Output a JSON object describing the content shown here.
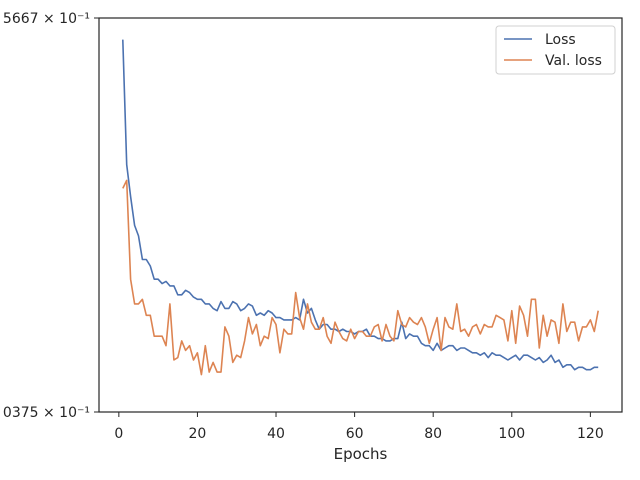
{
  "chart_data": {
    "type": "line",
    "xlabel": "Epochs",
    "ylabel": "",
    "yscale": "log",
    "ylim": [
      0.375,
      0.5667
    ],
    "xlim": [
      -5.05,
      128.05
    ],
    "xticks": [
      0,
      20,
      40,
      60,
      80,
      100,
      120
    ],
    "xtick_labels": [
      "0",
      "20",
      "40",
      "60",
      "80",
      "100",
      "120"
    ],
    "ytick_labels": [
      "5667 × 10⁻¹",
      "0375 × 10⁻¹"
    ],
    "grid": false,
    "legend_position": "top-right",
    "colors": {
      "loss": "#4c72b0",
      "val_loss": "#dd8452"
    },
    "series": [
      {
        "name": "Loss",
        "x": [
          1,
          2,
          3,
          4,
          5,
          6,
          7,
          8,
          9,
          10,
          11,
          12,
          13,
          14,
          15,
          16,
          17,
          18,
          19,
          20,
          21,
          22,
          23,
          24,
          25,
          26,
          27,
          28,
          29,
          30,
          31,
          32,
          33,
          34,
          35,
          36,
          37,
          38,
          39,
          40,
          41,
          42,
          43,
          44,
          45,
          46,
          47,
          48,
          49,
          50,
          51,
          52,
          53,
          54,
          55,
          56,
          57,
          58,
          59,
          60,
          61,
          62,
          63,
          64,
          65,
          66,
          67,
          68,
          69,
          70,
          71,
          72,
          73,
          74,
          75,
          76,
          77,
          78,
          79,
          80,
          81,
          82,
          83,
          84,
          85,
          86,
          87,
          88,
          89,
          90,
          91,
          92,
          93,
          94,
          95,
          96,
          97,
          98,
          99,
          100,
          101,
          102,
          103,
          104,
          105,
          106,
          107,
          108,
          109,
          110,
          111,
          112,
          113,
          114,
          115,
          116,
          117,
          118,
          119,
          120,
          121,
          122
        ],
        "values": [
          0.554,
          0.486,
          0.47,
          0.456,
          0.451,
          0.44,
          0.44,
          0.437,
          0.431,
          0.431,
          0.429,
          0.43,
          0.428,
          0.428,
          0.424,
          0.424,
          0.426,
          0.425,
          0.423,
          0.422,
          0.422,
          0.42,
          0.42,
          0.418,
          0.417,
          0.421,
          0.418,
          0.418,
          0.421,
          0.42,
          0.417,
          0.418,
          0.42,
          0.419,
          0.415,
          0.416,
          0.415,
          0.417,
          0.416,
          0.414,
          0.414,
          0.413,
          0.413,
          0.413,
          0.414,
          0.413,
          0.422,
          0.416,
          0.418,
          0.413,
          0.409,
          0.411,
          0.411,
          0.409,
          0.409,
          0.408,
          0.409,
          0.408,
          0.408,
          0.407,
          0.408,
          0.408,
          0.409,
          0.406,
          0.406,
          0.405,
          0.405,
          0.404,
          0.404,
          0.405,
          0.405,
          0.412,
          0.405,
          0.407,
          0.406,
          0.406,
          0.403,
          0.402,
          0.402,
          0.4,
          0.403,
          0.4,
          0.401,
          0.402,
          0.402,
          0.4,
          0.401,
          0.401,
          0.4,
          0.399,
          0.399,
          0.398,
          0.399,
          0.397,
          0.399,
          0.398,
          0.398,
          0.397,
          0.396,
          0.397,
          0.398,
          0.396,
          0.398,
          0.398,
          0.397,
          0.396,
          0.397,
          0.395,
          0.396,
          0.398,
          0.395,
          0.396,
          0.393,
          0.394,
          0.394,
          0.392,
          0.393,
          0.393,
          0.392,
          0.392,
          0.393,
          0.393
        ]
      },
      {
        "name": "Val. loss",
        "x": [
          1,
          2,
          3,
          4,
          5,
          6,
          7,
          8,
          9,
          10,
          11,
          12,
          13,
          14,
          15,
          16,
          17,
          18,
          19,
          20,
          21,
          22,
          23,
          24,
          25,
          26,
          27,
          28,
          29,
          30,
          31,
          32,
          33,
          34,
          35,
          36,
          37,
          38,
          39,
          40,
          41,
          42,
          43,
          44,
          45,
          46,
          47,
          48,
          49,
          50,
          51,
          52,
          53,
          54,
          55,
          56,
          57,
          58,
          59,
          60,
          61,
          62,
          63,
          64,
          65,
          66,
          67,
          68,
          69,
          70,
          71,
          72,
          73,
          74,
          75,
          76,
          77,
          78,
          79,
          80,
          81,
          82,
          83,
          84,
          85,
          86,
          87,
          88,
          89,
          90,
          91,
          92,
          93,
          94,
          95,
          96,
          97,
          98,
          99,
          100,
          101,
          102,
          103,
          104,
          105,
          106,
          107,
          108,
          109,
          110,
          111,
          112,
          113,
          114,
          115,
          116,
          117,
          118,
          119,
          120,
          121,
          122
        ],
        "values": [
          0.474,
          0.478,
          0.431,
          0.42,
          0.42,
          0.422,
          0.415,
          0.415,
          0.406,
          0.406,
          0.406,
          0.402,
          0.42,
          0.396,
          0.397,
          0.404,
          0.4,
          0.402,
          0.396,
          0.399,
          0.39,
          0.402,
          0.391,
          0.395,
          0.391,
          0.391,
          0.41,
          0.406,
          0.395,
          0.398,
          0.397,
          0.404,
          0.414,
          0.407,
          0.411,
          0.402,
          0.406,
          0.405,
          0.414,
          0.411,
          0.399,
          0.409,
          0.407,
          0.407,
          0.425,
          0.414,
          0.409,
          0.42,
          0.412,
          0.409,
          0.409,
          0.414,
          0.406,
          0.403,
          0.412,
          0.408,
          0.405,
          0.404,
          0.409,
          0.405,
          0.408,
          0.408,
          0.406,
          0.406,
          0.41,
          0.411,
          0.404,
          0.411,
          0.406,
          0.404,
          0.417,
          0.411,
          0.41,
          0.414,
          0.412,
          0.411,
          0.414,
          0.41,
          0.403,
          0.409,
          0.414,
          0.4,
          0.414,
          0.41,
          0.409,
          0.42,
          0.408,
          0.409,
          0.406,
          0.41,
          0.411,
          0.407,
          0.411,
          0.41,
          0.41,
          0.415,
          0.414,
          0.413,
          0.404,
          0.417,
          0.403,
          0.419,
          0.415,
          0.406,
          0.422,
          0.422,
          0.401,
          0.415,
          0.406,
          0.413,
          0.412,
          0.403,
          0.42,
          0.408,
          0.412,
          0.412,
          0.404,
          0.41,
          0.41,
          0.413,
          0.408,
          0.417
        ]
      }
    ]
  }
}
